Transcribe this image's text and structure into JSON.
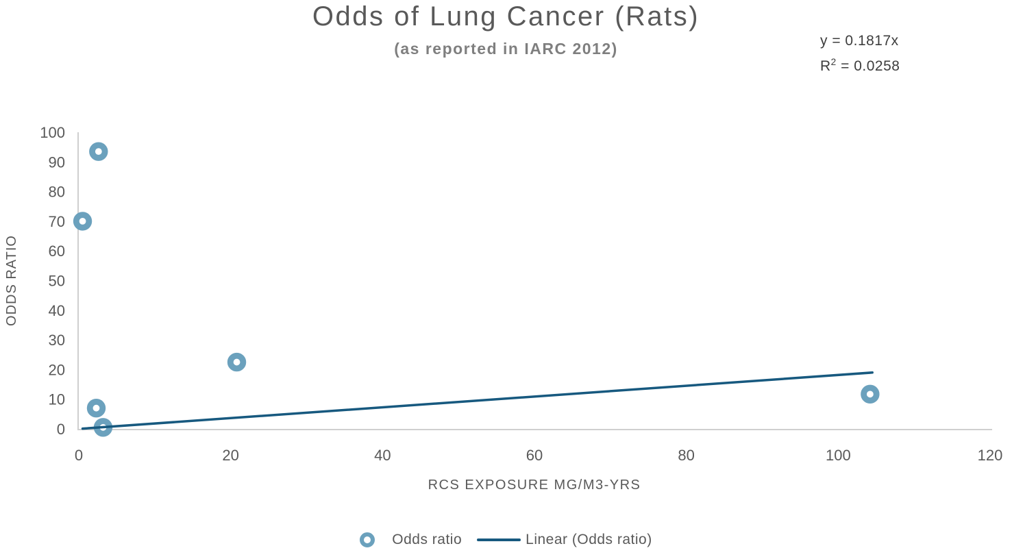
{
  "header": {
    "title": "Odds of Lung Cancer (Rats)",
    "subtitle": "(as reported in IARC 2012)",
    "equation_line1": "y = 0.1817x",
    "r2_base": "R",
    "r2_sup": "2",
    "r2_rest": " = 0.0258"
  },
  "chart_data": {
    "type": "scatter",
    "title": "Odds of Lung Cancer (Rats)",
    "subtitle": "(as reported in IARC 2012)",
    "xlabel": "RCS EXPOSURE MG/M3-YRS",
    "ylabel": "ODDS RATIO",
    "xlim": [
      0,
      120
    ],
    "ylim": [
      0,
      100
    ],
    "x_ticks": [
      0,
      20,
      40,
      60,
      80,
      100,
      120
    ],
    "y_ticks": [
      0,
      10,
      20,
      30,
      40,
      50,
      60,
      70,
      80,
      90,
      100
    ],
    "grid": false,
    "legend_position": "bottom",
    "series": [
      {
        "name": "Odds ratio",
        "kind": "scatter",
        "marker": "donut",
        "points": [
          {
            "x": 0.5,
            "y": 70
          },
          {
            "x": 2.6,
            "y": 93.5
          },
          {
            "x": 2.3,
            "y": 7
          },
          {
            "x": 3.2,
            "y": 0.5
          },
          {
            "x": 20.8,
            "y": 22.5
          },
          {
            "x": 104.2,
            "y": 11.7
          }
        ]
      },
      {
        "name": "Linear (Odds ratio)",
        "kind": "trendline",
        "slope": 0.1817,
        "intercept": 0,
        "r_squared": 0.0258,
        "x_range": [
          0.5,
          104.5
        ]
      }
    ]
  },
  "legend": {
    "odds_ratio_label": "Odds ratio",
    "linear_label": "Linear (Odds ratio)"
  },
  "colors": {
    "marker": "#6BA1BD",
    "trendline": "#17597F",
    "axis_line": "#cfcfcf",
    "tick_text": "#595959"
  }
}
